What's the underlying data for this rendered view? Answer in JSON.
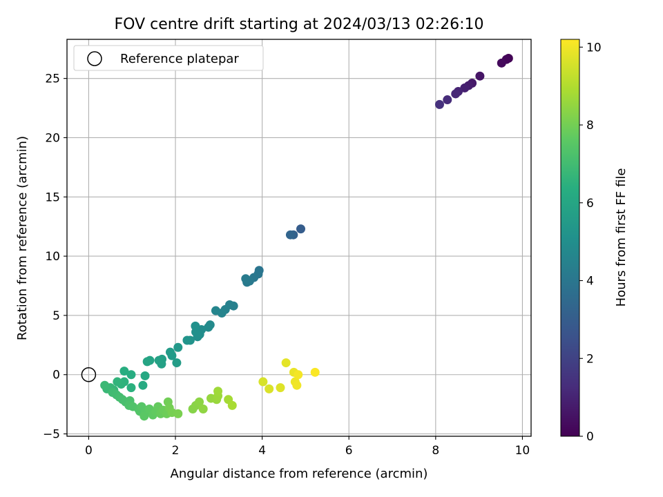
{
  "chart_data": {
    "type": "scatter",
    "title": "FOV centre drift starting at 2024/03/13 02:26:10",
    "xlabel": "Angular distance from reference (arcmin)",
    "ylabel": "Rotation from reference (arcmin)",
    "xlim": [
      -0.5,
      10.2
    ],
    "ylim": [
      -5.2,
      28.3
    ],
    "x_ticks": [
      "0",
      "2",
      "4",
      "6",
      "8",
      "10"
    ],
    "y_ticks": [
      "−5",
      "0",
      "5",
      "10",
      "15",
      "20",
      "25"
    ],
    "grid": true,
    "legend": {
      "placement": "top-left",
      "entries": [
        {
          "label": "Reference platepar",
          "marker": "open-circle"
        }
      ]
    },
    "reference_point": {
      "x": 0,
      "y": 0
    },
    "colorbar": {
      "label": "Hours from first FF file",
      "colormap": "viridis",
      "range": [
        0,
        10.2
      ],
      "ticks": [
        "0",
        "2",
        "4",
        "6",
        "8",
        "10"
      ]
    },
    "points": [
      {
        "x": 9.68,
        "y": 26.7,
        "c": 0.05
      },
      {
        "x": 9.63,
        "y": 26.6,
        "c": 0.15
      },
      {
        "x": 9.52,
        "y": 26.3,
        "c": 0.25
      },
      {
        "x": 9.02,
        "y": 25.2,
        "c": 0.55
      },
      {
        "x": 8.84,
        "y": 24.6,
        "c": 0.7
      },
      {
        "x": 8.76,
        "y": 24.4,
        "c": 0.8
      },
      {
        "x": 8.67,
        "y": 24.2,
        "c": 0.9
      },
      {
        "x": 8.52,
        "y": 23.9,
        "c": 1.0
      },
      {
        "x": 8.46,
        "y": 23.7,
        "c": 1.1
      },
      {
        "x": 8.27,
        "y": 23.2,
        "c": 1.25
      },
      {
        "x": 8.09,
        "y": 22.8,
        "c": 1.4
      },
      {
        "x": 4.89,
        "y": 12.3,
        "c": 3.0
      },
      {
        "x": 4.72,
        "y": 11.8,
        "c": 3.15
      },
      {
        "x": 4.65,
        "y": 11.8,
        "c": 3.3
      },
      {
        "x": 3.93,
        "y": 8.8,
        "c": 3.9
      },
      {
        "x": 3.91,
        "y": 8.5,
        "c": 4.0
      },
      {
        "x": 3.81,
        "y": 8.2,
        "c": 4.05
      },
      {
        "x": 3.71,
        "y": 7.9,
        "c": 4.1
      },
      {
        "x": 3.65,
        "y": 7.8,
        "c": 4.15
      },
      {
        "x": 3.62,
        "y": 8.1,
        "c": 4.2
      },
      {
        "x": 3.34,
        "y": 5.8,
        "c": 4.4
      },
      {
        "x": 3.25,
        "y": 5.9,
        "c": 4.45
      },
      {
        "x": 3.15,
        "y": 5.5,
        "c": 4.5
      },
      {
        "x": 3.07,
        "y": 5.2,
        "c": 4.55
      },
      {
        "x": 2.93,
        "y": 5.4,
        "c": 4.6
      },
      {
        "x": 2.8,
        "y": 4.2,
        "c": 4.8
      },
      {
        "x": 2.76,
        "y": 4.0,
        "c": 4.85
      },
      {
        "x": 2.6,
        "y": 3.8,
        "c": 4.9
      },
      {
        "x": 2.56,
        "y": 3.4,
        "c": 4.95
      },
      {
        "x": 2.51,
        "y": 3.2,
        "c": 5.0
      },
      {
        "x": 2.47,
        "y": 3.6,
        "c": 5.05
      },
      {
        "x": 2.46,
        "y": 4.1,
        "c": 5.1
      },
      {
        "x": 2.34,
        "y": 2.9,
        "c": 5.2
      },
      {
        "x": 2.27,
        "y": 2.9,
        "c": 5.25
      },
      {
        "x": 2.06,
        "y": 2.3,
        "c": 5.4
      },
      {
        "x": 1.92,
        "y": 1.6,
        "c": 5.5
      },
      {
        "x": 1.88,
        "y": 1.9,
        "c": 5.55
      },
      {
        "x": 2.03,
        "y": 1.0,
        "c": 5.6
      },
      {
        "x": 1.69,
        "y": 1.3,
        "c": 5.7
      },
      {
        "x": 1.68,
        "y": 0.9,
        "c": 5.75
      },
      {
        "x": 1.62,
        "y": 1.2,
        "c": 5.8
      },
      {
        "x": 1.41,
        "y": 1.2,
        "c": 5.9
      },
      {
        "x": 1.35,
        "y": 1.1,
        "c": 5.95
      },
      {
        "x": 1.3,
        "y": -0.1,
        "c": 6.1
      },
      {
        "x": 1.25,
        "y": -0.9,
        "c": 6.2
      },
      {
        "x": 0.98,
        "y": 0.0,
        "c": 6.3
      },
      {
        "x": 0.82,
        "y": 0.3,
        "c": 6.35
      },
      {
        "x": 0.98,
        "y": -1.1,
        "c": 6.45
      },
      {
        "x": 0.82,
        "y": -0.6,
        "c": 6.5
      },
      {
        "x": 0.75,
        "y": -0.8,
        "c": 6.55
      },
      {
        "x": 0.66,
        "y": -0.6,
        "c": 6.6
      },
      {
        "x": 0.58,
        "y": -1.3,
        "c": 6.7
      },
      {
        "x": 0.5,
        "y": -1.1,
        "c": 6.75
      },
      {
        "x": 0.42,
        "y": -1.2,
        "c": 6.8
      },
      {
        "x": 0.37,
        "y": -0.9,
        "c": 6.85
      },
      {
        "x": 0.55,
        "y": -1.5,
        "c": 6.95
      },
      {
        "x": 0.64,
        "y": -1.7,
        "c": 7.0
      },
      {
        "x": 0.71,
        "y": -1.9,
        "c": 7.05
      },
      {
        "x": 0.78,
        "y": -2.1,
        "c": 7.1
      },
      {
        "x": 0.85,
        "y": -2.3,
        "c": 7.15
      },
      {
        "x": 0.95,
        "y": -2.2,
        "c": 7.2
      },
      {
        "x": 0.93,
        "y": -2.6,
        "c": 7.25
      },
      {
        "x": 1.02,
        "y": -2.7,
        "c": 7.3
      },
      {
        "x": 1.15,
        "y": -2.9,
        "c": 7.35
      },
      {
        "x": 1.18,
        "y": -3.1,
        "c": 7.4
      },
      {
        "x": 1.22,
        "y": -2.7,
        "c": 7.45
      },
      {
        "x": 1.3,
        "y": -3.2,
        "c": 7.5
      },
      {
        "x": 1.28,
        "y": -3.5,
        "c": 7.55
      },
      {
        "x": 1.4,
        "y": -2.9,
        "c": 7.6
      },
      {
        "x": 1.48,
        "y": -3.4,
        "c": 7.65
      },
      {
        "x": 1.55,
        "y": -3.1,
        "c": 7.7
      },
      {
        "x": 1.6,
        "y": -2.7,
        "c": 7.75
      },
      {
        "x": 1.66,
        "y": -3.3,
        "c": 7.8
      },
      {
        "x": 1.72,
        "y": -3.0,
        "c": 7.85
      },
      {
        "x": 1.8,
        "y": -3.3,
        "c": 7.9
      },
      {
        "x": 1.83,
        "y": -2.3,
        "c": 7.95
      },
      {
        "x": 1.86,
        "y": -2.8,
        "c": 8.0
      },
      {
        "x": 1.92,
        "y": -3.2,
        "c": 8.05
      },
      {
        "x": 2.06,
        "y": -3.3,
        "c": 8.1
      },
      {
        "x": 2.4,
        "y": -2.9,
        "c": 8.3
      },
      {
        "x": 2.47,
        "y": -2.6,
        "c": 8.35
      },
      {
        "x": 2.55,
        "y": -2.3,
        "c": 8.4
      },
      {
        "x": 2.64,
        "y": -2.9,
        "c": 8.45
      },
      {
        "x": 2.82,
        "y": -2.0,
        "c": 8.55
      },
      {
        "x": 2.95,
        "y": -2.1,
        "c": 8.6
      },
      {
        "x": 2.98,
        "y": -1.8,
        "c": 8.65
      },
      {
        "x": 2.98,
        "y": -1.4,
        "c": 8.7
      },
      {
        "x": 3.22,
        "y": -2.1,
        "c": 8.8
      },
      {
        "x": 3.31,
        "y": -2.6,
        "c": 8.85
      },
      {
        "x": 4.02,
        "y": -0.6,
        "c": 9.6
      },
      {
        "x": 4.16,
        "y": -1.2,
        "c": 9.65
      },
      {
        "x": 4.42,
        "y": -1.1,
        "c": 9.7
      },
      {
        "x": 4.55,
        "y": 1.0,
        "c": 9.8
      },
      {
        "x": 4.73,
        "y": 0.2,
        "c": 9.9
      },
      {
        "x": 4.76,
        "y": -0.6,
        "c": 9.95
      },
      {
        "x": 4.8,
        "y": -0.9,
        "c": 10.0
      },
      {
        "x": 4.83,
        "y": 0.0,
        "c": 10.05
      },
      {
        "x": 5.22,
        "y": 0.2,
        "c": 10.15
      }
    ]
  }
}
